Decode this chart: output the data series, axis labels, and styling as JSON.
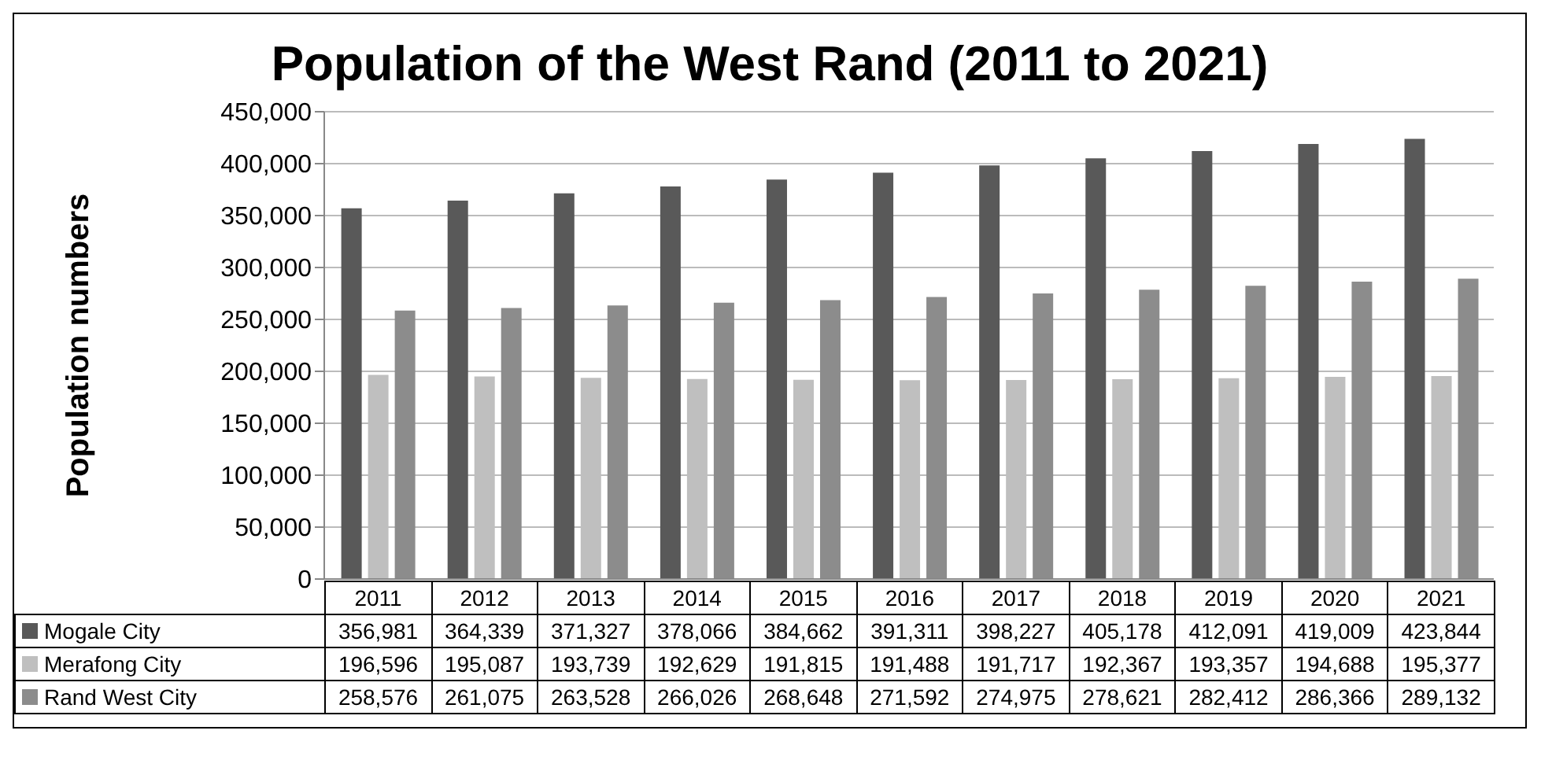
{
  "chart_data": {
    "type": "bar",
    "title": "Population of the West Rand (2011 to 2021)",
    "ylabel": "Population numbers",
    "categories": [
      "2011",
      "2012",
      "2013",
      "2014",
      "2015",
      "2016",
      "2017",
      "2018",
      "2019",
      "2020",
      "2021"
    ],
    "series": [
      {
        "name": "Mogale City",
        "color": "#595959",
        "values": [
          356981,
          364339,
          371327,
          378066,
          384662,
          391311,
          398227,
          405178,
          412091,
          419009,
          423844
        ],
        "value_labels": [
          "356,981",
          "364,339",
          "371,327",
          "378,066",
          "384,662",
          "391,311",
          "398,227",
          "405,178",
          "412,091",
          "419,009",
          "423,844"
        ]
      },
      {
        "name": "Merafong City",
        "color": "#bfbfbf",
        "values": [
          196596,
          195087,
          193739,
          192629,
          191815,
          191488,
          191717,
          192367,
          193357,
          194688,
          195377
        ],
        "value_labels": [
          "196,596",
          "195,087",
          "193,739",
          "192,629",
          "191,815",
          "191,488",
          "191,717",
          "192,367",
          "193,357",
          "194,688",
          "195,377"
        ]
      },
      {
        "name": "Rand West City",
        "color": "#8c8c8c",
        "values": [
          258576,
          261075,
          263528,
          266026,
          268648,
          271592,
          274975,
          278621,
          282412,
          286366,
          289132
        ],
        "value_labels": [
          "258,576",
          "261,075",
          "263,528",
          "266,026",
          "268,648",
          "271,592",
          "274,975",
          "278,621",
          "282,412",
          "286,366",
          "289,132"
        ]
      }
    ],
    "ylim": [
      0,
      450000
    ],
    "yticks": [
      0,
      {
        "value": 50000,
        "label": "50,000"
      },
      {
        "value": 100000,
        "label": "100,000"
      },
      {
        "value": 150000,
        "label": "150,000"
      },
      {
        "value": 200000,
        "label": "200,000"
      },
      {
        "value": 250000,
        "label": "250,000"
      },
      {
        "value": 300000,
        "label": "300,000"
      },
      {
        "value": 350000,
        "label": "350,000"
      },
      {
        "value": 400000,
        "label": "400,000"
      },
      {
        "value": 450000,
        "label": "450,000"
      }
    ],
    "grid": "y",
    "legend": "bottom"
  }
}
